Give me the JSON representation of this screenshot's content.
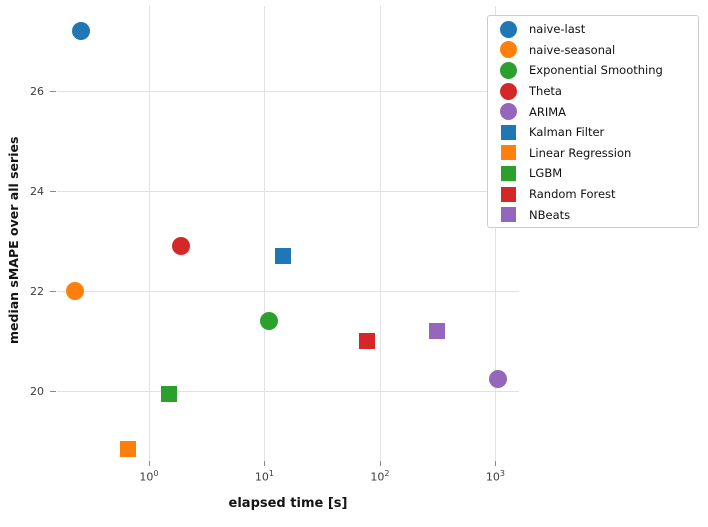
{
  "chart_data": {
    "type": "scatter",
    "title": "",
    "xlabel": "elapsed time [s]",
    "ylabel": "median sMAPE over all series",
    "x_scale": "log",
    "y_scale": "linear",
    "xlim": [
      0.16,
      1600
    ],
    "ylim": [
      18.6,
      27.7
    ],
    "grid": true,
    "legend_position": "upper right",
    "x_ticks": [
      {
        "value": 1,
        "label_base": "10",
        "label_exp": "0"
      },
      {
        "value": 10,
        "label_base": "10",
        "label_exp": "1"
      },
      {
        "value": 100,
        "label_base": "10",
        "label_exp": "2"
      },
      {
        "value": 1000,
        "label_base": "10",
        "label_exp": "3"
      }
    ],
    "y_ticks": [
      {
        "value": 20,
        "label": "20"
      },
      {
        "value": 22,
        "label": "22"
      },
      {
        "value": 24,
        "label": "24"
      },
      {
        "value": 26,
        "label": "26"
      }
    ],
    "series": [
      {
        "name": "naive-last",
        "marker": "circle",
        "color": "#1f77b4",
        "x": 0.26,
        "y": 27.2
      },
      {
        "name": "naive-seasonal",
        "marker": "circle",
        "color": "#ff7f0e",
        "x": 0.23,
        "y": 22.0
      },
      {
        "name": "Exponential Smoothing",
        "marker": "circle",
        "color": "#2ca02c",
        "x": 11.0,
        "y": 21.4
      },
      {
        "name": "Theta",
        "marker": "circle",
        "color": "#d62728",
        "x": 1.9,
        "y": 22.9
      },
      {
        "name": "ARIMA",
        "marker": "circle",
        "color": "#9467bd",
        "x": 1050,
        "y": 20.25
      },
      {
        "name": "Kalman Filter",
        "marker": "square",
        "color": "#1f77b4",
        "x": 14.5,
        "y": 22.7
      },
      {
        "name": "Linear Regression",
        "marker": "square",
        "color": "#ff7f0e",
        "x": 0.66,
        "y": 18.85
      },
      {
        "name": "LGBM",
        "marker": "square",
        "color": "#2ca02c",
        "x": 1.5,
        "y": 19.95
      },
      {
        "name": "Random Forest",
        "marker": "square",
        "color": "#d62728",
        "x": 78.0,
        "y": 21.0
      },
      {
        "name": "NBeats",
        "marker": "square",
        "color": "#9467bd",
        "x": 310,
        "y": 21.2
      }
    ]
  }
}
